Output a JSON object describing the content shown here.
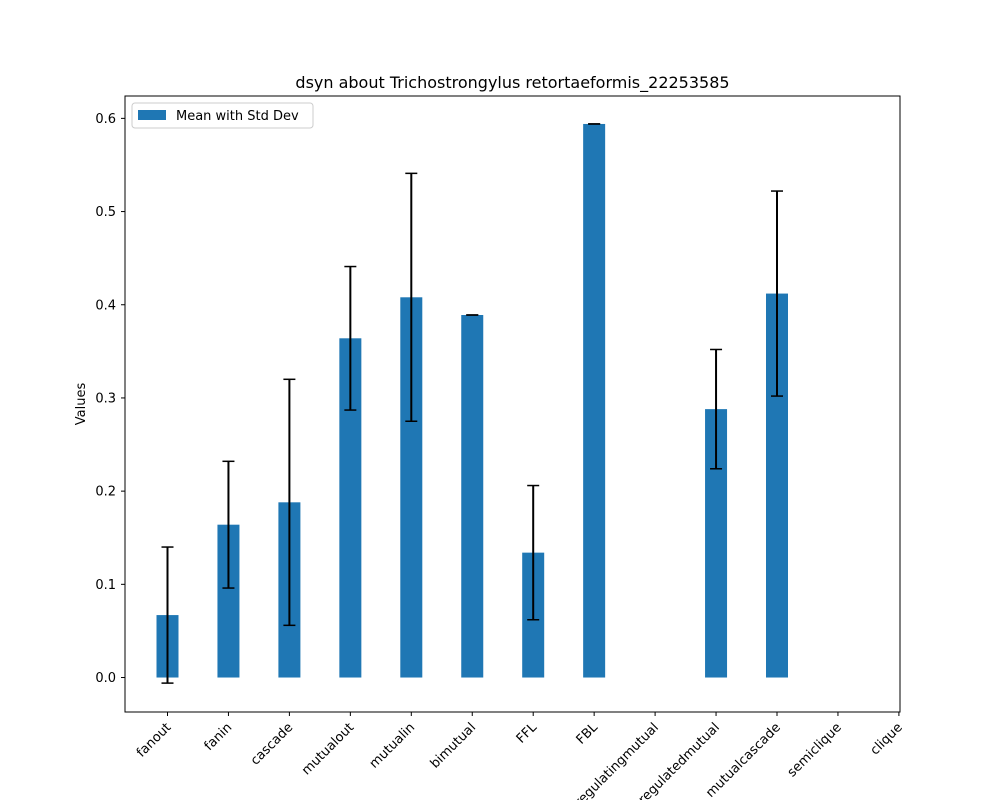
{
  "chart_data": {
    "type": "bar",
    "title": "dsyn about Trichostrongylus retortaeformis_22253585",
    "xlabel": "",
    "ylabel": "Values",
    "categories": [
      "fanout",
      "fanin",
      "cascade",
      "mutualout",
      "mutualin",
      "bimutual",
      "FFL",
      "FBL",
      "regulatingmutual",
      "regulatedmutual",
      "mutualcascade",
      "semiclique",
      "clique"
    ],
    "series": [
      {
        "name": "Mean with Std Dev",
        "color": "#1f77b4",
        "values": [
          0.067,
          0.164,
          0.188,
          0.364,
          0.408,
          0.389,
          0.134,
          0.594,
          null,
          0.288,
          0.412,
          null,
          null
        ],
        "errors": [
          0.073,
          0.068,
          0.132,
          0.077,
          0.133,
          0.0,
          0.072,
          0.0,
          null,
          0.064,
          0.11,
          null,
          null
        ]
      }
    ],
    "ylim": [
      -0.037,
      0.624
    ],
    "yticks": [
      0.0,
      0.1,
      0.2,
      0.3,
      0.4,
      0.5,
      0.6
    ],
    "ytick_labels": [
      "0.0",
      "0.1",
      "0.2",
      "0.3",
      "0.4",
      "0.5",
      "0.6"
    ],
    "legend_position": "upper left",
    "grid": false
  }
}
